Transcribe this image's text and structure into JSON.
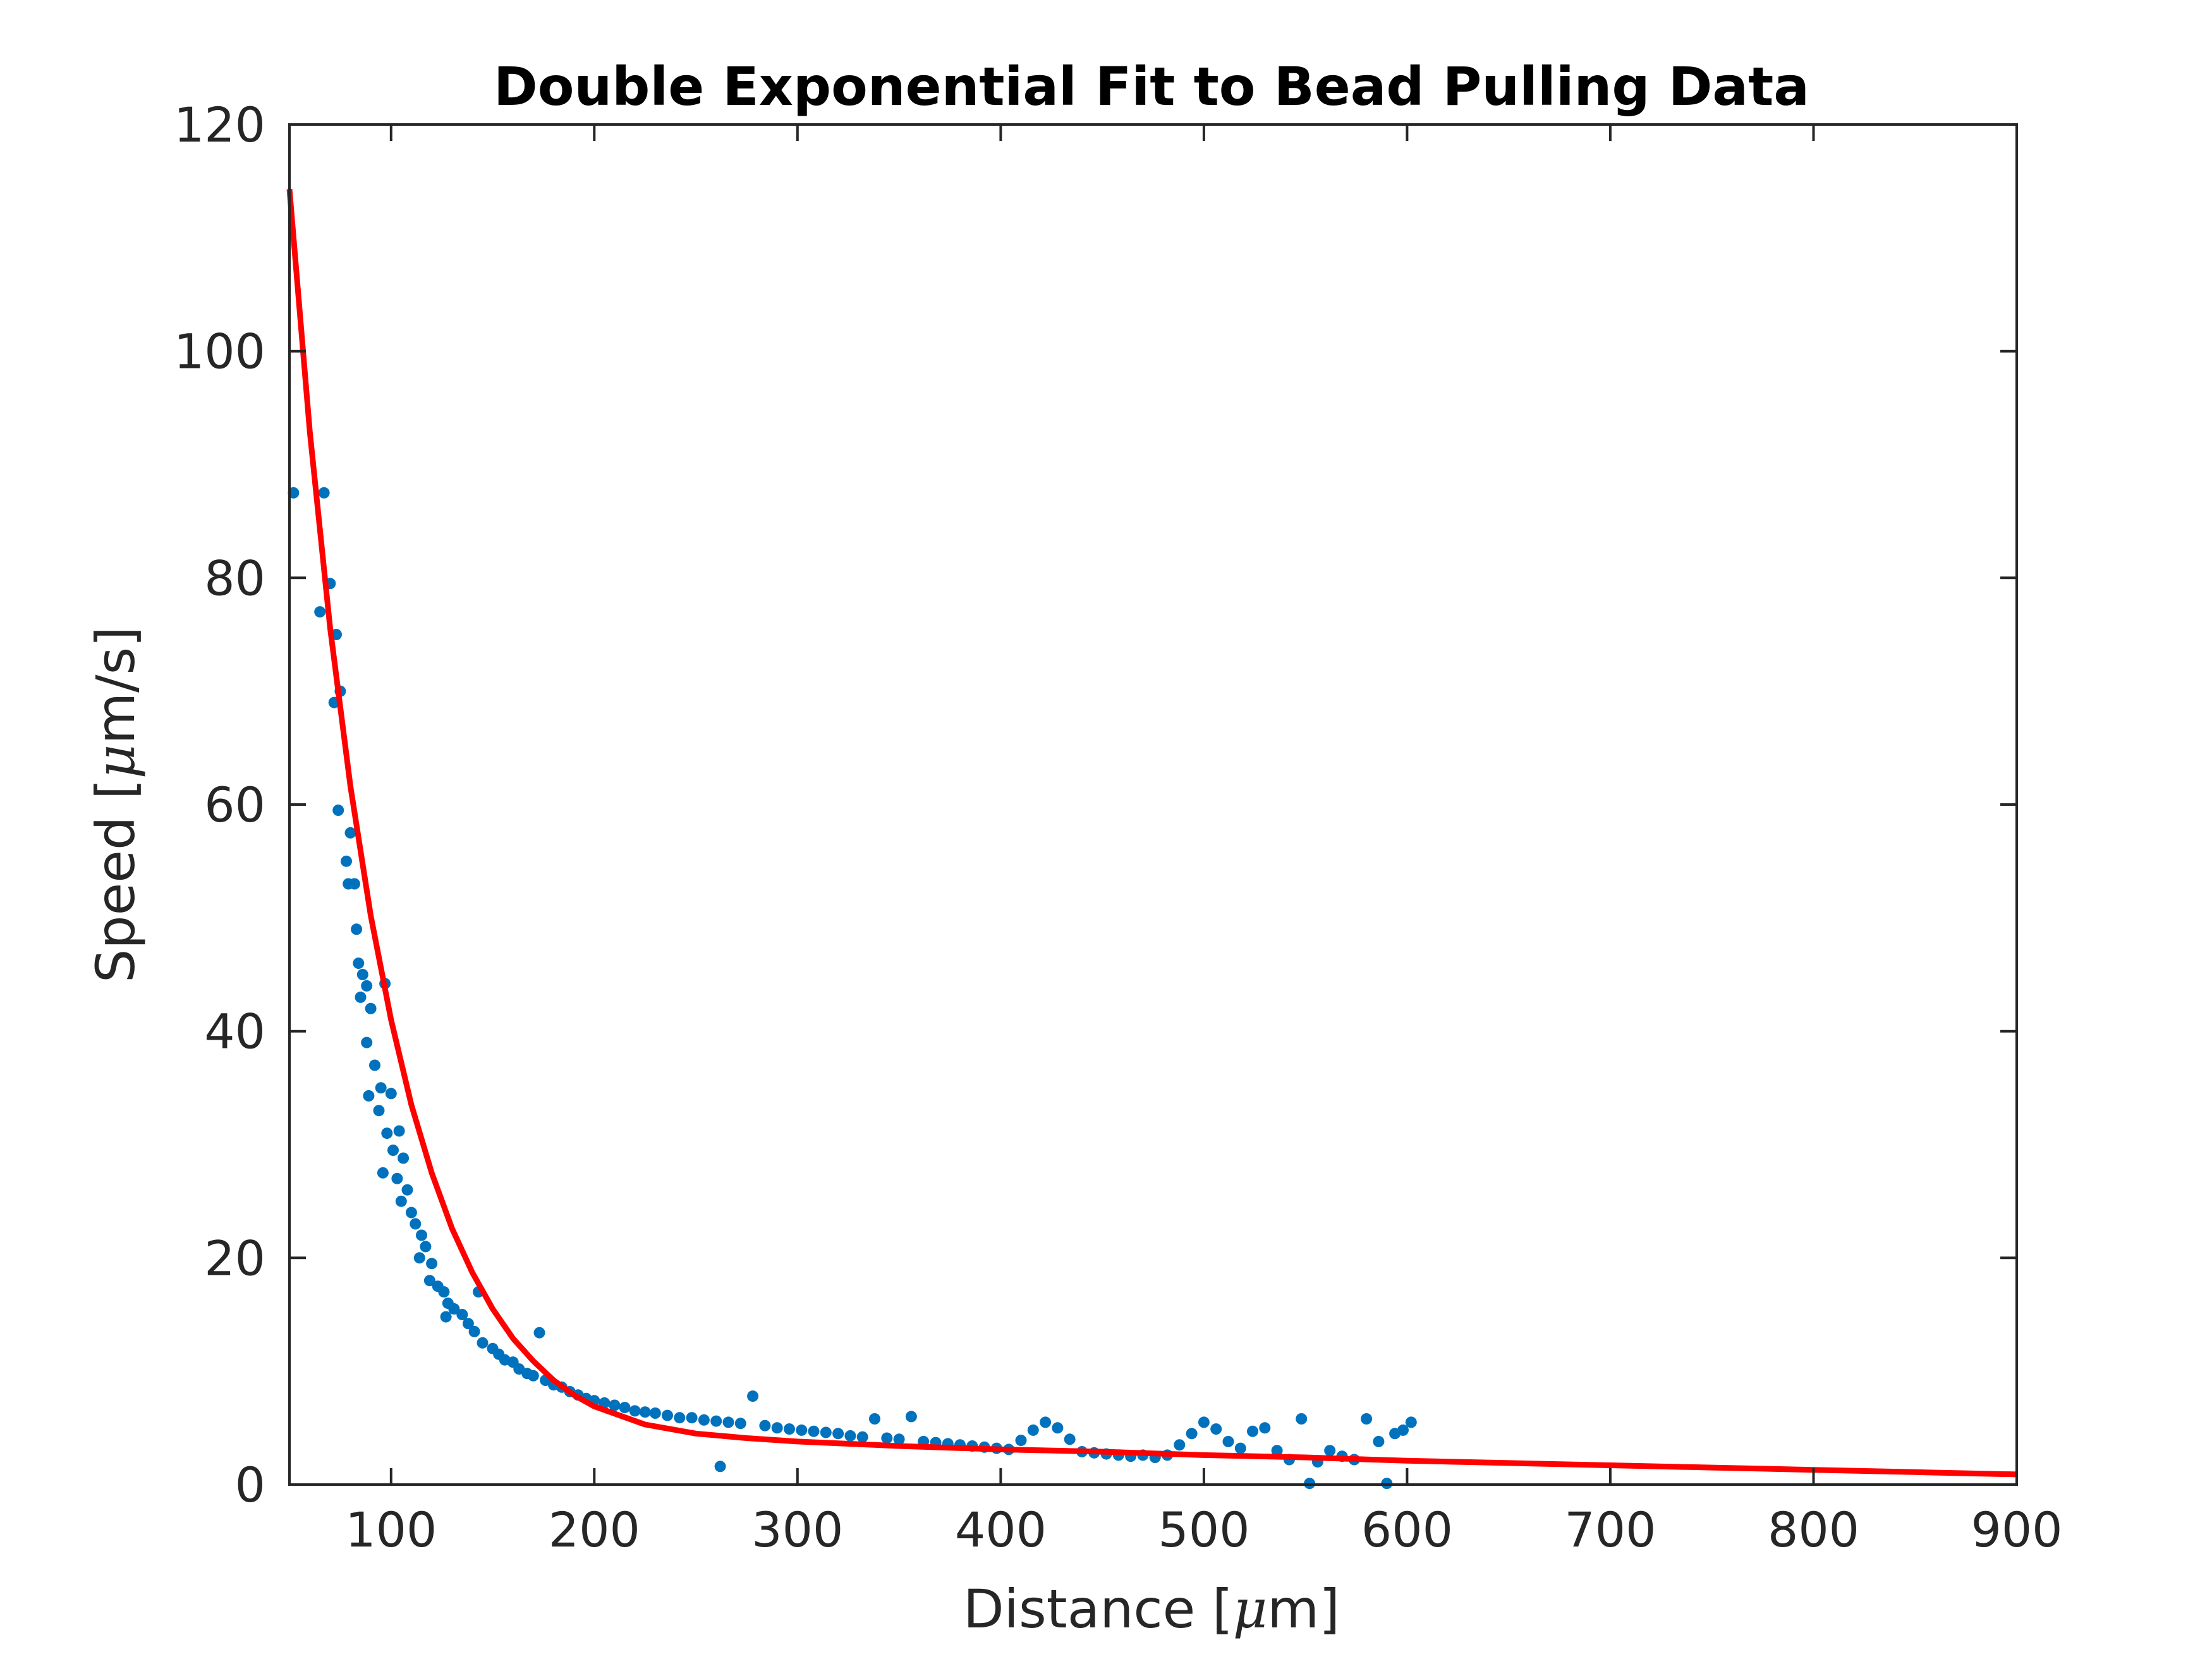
{
  "chart_data": {
    "type": "scatter",
    "title": "Double Exponential Fit to Bead Pulling Data",
    "xlabel": {
      "before": "Distance [",
      "mu": "μ",
      "after": "m]"
    },
    "ylabel": {
      "before": "Speed [",
      "mu": "μ",
      "after": "m/s]"
    },
    "xlim": [
      50,
      900
    ],
    "ylim": [
      0,
      120
    ],
    "xticks": [
      100,
      200,
      300,
      400,
      500,
      600,
      700,
      800,
      900
    ],
    "yticks": [
      0,
      20,
      40,
      60,
      80,
      100,
      120
    ],
    "grid": false,
    "legend": "none",
    "series": [
      {
        "kind": "scatter",
        "color": "#0072BD",
        "points": [
          [
            52,
            87.5
          ],
          [
            67,
            87.5
          ],
          [
            70,
            79.5
          ],
          [
            65,
            77
          ],
          [
            73,
            75
          ],
          [
            72,
            69
          ],
          [
            75,
            70
          ],
          [
            74,
            59.5
          ],
          [
            80,
            57.5
          ],
          [
            78,
            55
          ],
          [
            79,
            53
          ],
          [
            82,
            53
          ],
          [
            83,
            49
          ],
          [
            84,
            46
          ],
          [
            86,
            45
          ],
          [
            88,
            44
          ],
          [
            85,
            43
          ],
          [
            90,
            42
          ],
          [
            97,
            44.2
          ],
          [
            88,
            39
          ],
          [
            92,
            37
          ],
          [
            89,
            34.3
          ],
          [
            95,
            35
          ],
          [
            100,
            34.5
          ],
          [
            94,
            33
          ],
          [
            98,
            31
          ],
          [
            104,
            31.2
          ],
          [
            101,
            29.5
          ],
          [
            96,
            27.5
          ],
          [
            103,
            27
          ],
          [
            106,
            28.8
          ],
          [
            108,
            26
          ],
          [
            105,
            25
          ],
          [
            110,
            24
          ],
          [
            112,
            23
          ],
          [
            115,
            22
          ],
          [
            117,
            21
          ],
          [
            114,
            20
          ],
          [
            120,
            19.5
          ],
          [
            119,
            18
          ],
          [
            123,
            17.5
          ],
          [
            126,
            17
          ],
          [
            128,
            16
          ],
          [
            131,
            15.5
          ],
          [
            127,
            14.8
          ],
          [
            135,
            15
          ],
          [
            138,
            14.2
          ],
          [
            141,
            13.5
          ],
          [
            143,
            17
          ],
          [
            145,
            12.5
          ],
          [
            150,
            12
          ],
          [
            153,
            11.5
          ],
          [
            156,
            11
          ],
          [
            160,
            10.8
          ],
          [
            163,
            10.2
          ],
          [
            167,
            9.8
          ],
          [
            170,
            9.6
          ],
          [
            173,
            13.4
          ],
          [
            176,
            9.2
          ],
          [
            180,
            8.8
          ],
          [
            184,
            8.6
          ],
          [
            188,
            8.2
          ],
          [
            192,
            7.9
          ],
          [
            196,
            7.6
          ],
          [
            200,
            7.4
          ],
          [
            205,
            7.2
          ],
          [
            210,
            7.0
          ],
          [
            215,
            6.8
          ],
          [
            220,
            6.5
          ],
          [
            225,
            6.4
          ],
          [
            230,
            6.3
          ],
          [
            236,
            6.1
          ],
          [
            242,
            5.9
          ],
          [
            248,
            5.9
          ],
          [
            254,
            5.7
          ],
          [
            260,
            5.6
          ],
          [
            262,
            1.6
          ],
          [
            266,
            5.5
          ],
          [
            272,
            5.4
          ],
          [
            278,
            7.8
          ],
          [
            284,
            5.2
          ],
          [
            290,
            5.0
          ],
          [
            296,
            4.9
          ],
          [
            302,
            4.8
          ],
          [
            308,
            4.7
          ],
          [
            314,
            4.6
          ],
          [
            320,
            4.5
          ],
          [
            326,
            4.3
          ],
          [
            332,
            4.2
          ],
          [
            338,
            5.8
          ],
          [
            344,
            4.1
          ],
          [
            350,
            4.0
          ],
          [
            356,
            6.0
          ],
          [
            362,
            3.8
          ],
          [
            368,
            3.7
          ],
          [
            374,
            3.6
          ],
          [
            380,
            3.5
          ],
          [
            386,
            3.4
          ],
          [
            392,
            3.3
          ],
          [
            398,
            3.2
          ],
          [
            404,
            3.1
          ],
          [
            410,
            3.9
          ],
          [
            416,
            4.8
          ],
          [
            422,
            5.5
          ],
          [
            428,
            5.0
          ],
          [
            434,
            4.0
          ],
          [
            440,
            2.9
          ],
          [
            446,
            2.8
          ],
          [
            452,
            2.7
          ],
          [
            458,
            2.6
          ],
          [
            464,
            2.5
          ],
          [
            470,
            2.6
          ],
          [
            476,
            2.4
          ],
          [
            482,
            2.6
          ],
          [
            488,
            3.5
          ],
          [
            494,
            4.5
          ],
          [
            500,
            5.5
          ],
          [
            506,
            4.9
          ],
          [
            512,
            3.8
          ],
          [
            518,
            3.2
          ],
          [
            524,
            4.7
          ],
          [
            530,
            5.0
          ],
          [
            536,
            3.0
          ],
          [
            542,
            2.2
          ],
          [
            548,
            5.8
          ],
          [
            552,
            0.1
          ],
          [
            556,
            2.0
          ],
          [
            562,
            3.0
          ],
          [
            568,
            2.5
          ],
          [
            574,
            2.2
          ],
          [
            580,
            5.8
          ],
          [
            586,
            3.8
          ],
          [
            590,
            0.1
          ],
          [
            594,
            4.5
          ],
          [
            598,
            4.8
          ],
          [
            602,
            5.5
          ]
        ]
      },
      {
        "kind": "line",
        "color": "#FF0000",
        "model": "double-exponential",
        "points": [
          [
            50,
            114.3
          ],
          [
            60,
            92.9
          ],
          [
            70,
            75.6
          ],
          [
            80,
            61.6
          ],
          [
            90,
            50.2
          ],
          [
            100,
            41.0
          ],
          [
            110,
            33.5
          ],
          [
            120,
            27.5
          ],
          [
            130,
            22.6
          ],
          [
            140,
            18.7
          ],
          [
            150,
            15.5
          ],
          [
            160,
            12.9
          ],
          [
            170,
            10.9
          ],
          [
            180,
            9.2
          ],
          [
            190,
            7.9
          ],
          [
            200,
            6.9
          ],
          [
            225,
            5.3
          ],
          [
            250,
            4.5
          ],
          [
            275,
            4.1
          ],
          [
            300,
            3.8
          ],
          [
            350,
            3.4
          ],
          [
            400,
            3.1
          ],
          [
            450,
            2.9
          ],
          [
            500,
            2.6
          ],
          [
            550,
            2.4
          ],
          [
            600,
            2.1
          ],
          [
            650,
            1.9
          ],
          [
            700,
            1.7
          ],
          [
            750,
            1.5
          ],
          [
            800,
            1.3
          ],
          [
            850,
            1.1
          ],
          [
            900,
            0.9
          ]
        ]
      }
    ]
  }
}
